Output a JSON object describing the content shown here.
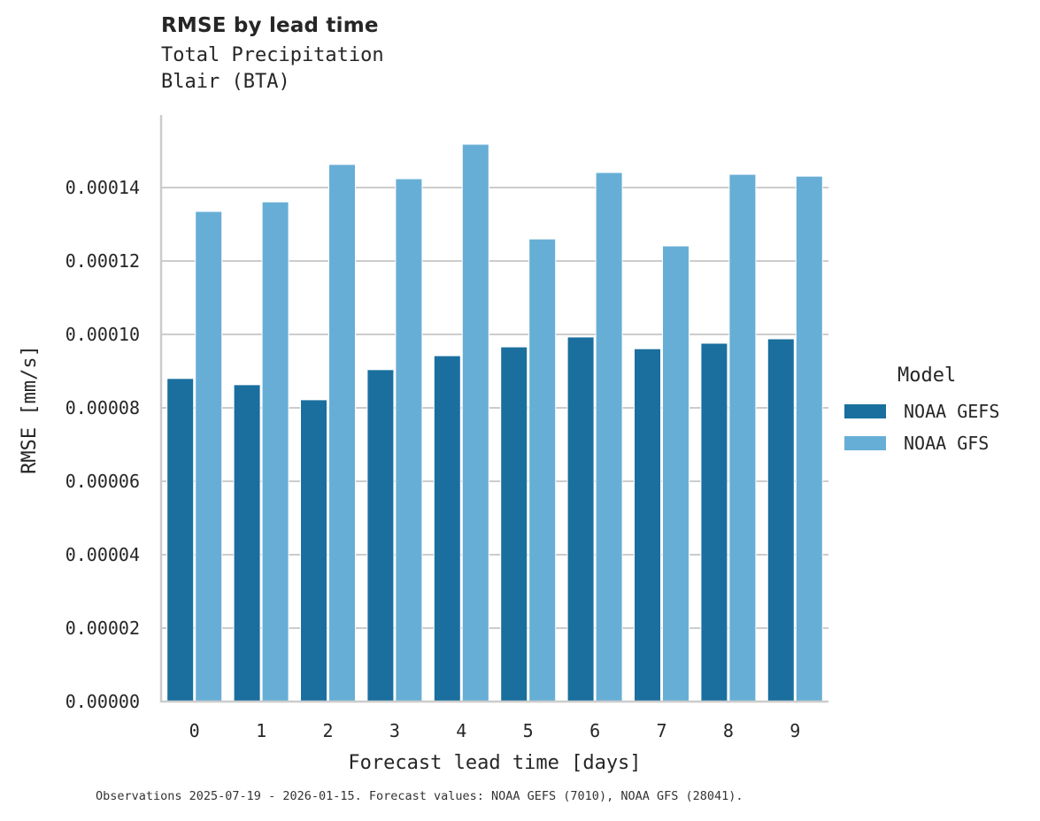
{
  "chart_data": {
    "type": "bar",
    "title": "RMSE by lead time",
    "subtitle_lines": [
      "Total Precipitation",
      "Blair (BTA)"
    ],
    "xlabel": "Forecast lead time [days]",
    "ylabel": "RMSE [mm/s]",
    "categories": [
      "0",
      "1",
      "2",
      "3",
      "4",
      "5",
      "6",
      "7",
      "8",
      "9"
    ],
    "ylim": [
      0,
      0.00016
    ],
    "yticks": [
      "0.00000",
      "0.00002",
      "0.00004",
      "0.00006",
      "0.00008",
      "0.00010",
      "0.00012",
      "0.00014"
    ],
    "grid": true,
    "legend_position": "right",
    "legend_title": "Model",
    "series": [
      {
        "name": "NOAA GEFS",
        "color": "#1a6f9e",
        "values": [
          8.8e-05,
          8.63e-05,
          8.22e-05,
          9.04e-05,
          9.42e-05,
          9.66e-05,
          9.93e-05,
          9.61e-05,
          9.76e-05,
          9.88e-05
        ]
      },
      {
        "name": "NOAA GFS",
        "color": "#67aed6",
        "values": [
          0.0001335,
          0.0001361,
          0.0001463,
          0.0001424,
          0.0001518,
          0.000126,
          0.0001441,
          0.0001241,
          0.0001436,
          0.0001431
        ]
      }
    ],
    "footnote": "Observations 2025-07-19 - 2026-01-15. Forecast values: NOAA GEFS (7010), NOAA GFS (28041)."
  }
}
